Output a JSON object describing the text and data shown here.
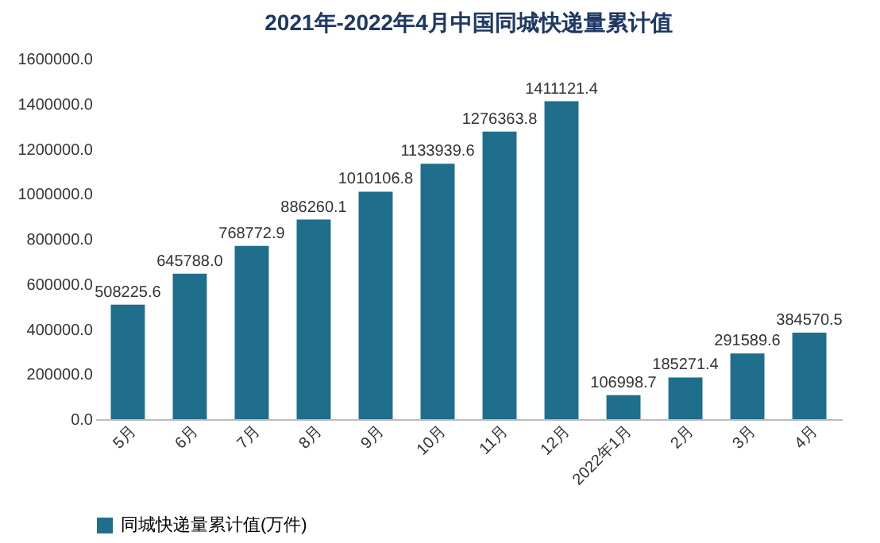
{
  "chart_data": {
    "type": "bar",
    "title": "2021年-2022年4月中国同城快递量累计值",
    "categories": [
      "5月",
      "6月",
      "7月",
      "8月",
      "9月",
      "10月",
      "11月",
      "12月",
      "2022年1月",
      "2月",
      "3月",
      "4月"
    ],
    "series": [
      {
        "name": "同城快递量累计值(万件)",
        "color": "#1f6e8c",
        "values": [
          508225.6,
          645788,
          768772.9,
          886260.1,
          1010106.8,
          1133939.6,
          1276363.8,
          1411121.4,
          106998.7,
          185271.4,
          291589.6,
          384570.5
        ],
        "value_labels": [
          "508225.6",
          "645788.0",
          "768772.9",
          "886260.1",
          "1010106.8",
          "1133939.6",
          "1276363.8",
          "1411121.4",
          "106998.7",
          "185271.4",
          "291589.6",
          "384570.5"
        ]
      }
    ],
    "ylim": [
      0,
      1600000
    ],
    "yticks": [
      {
        "value": 0,
        "label": "0.0"
      },
      {
        "value": 200000,
        "label": "200000.0"
      },
      {
        "value": 400000,
        "label": "400000.0"
      },
      {
        "value": 600000,
        "label": "600000.0"
      },
      {
        "value": 800000,
        "label": "800000.0"
      },
      {
        "value": 1000000,
        "label": "1000000.0"
      },
      {
        "value": 1200000,
        "label": "1200000.0"
      },
      {
        "value": 1400000,
        "label": "1400000.0"
      },
      {
        "value": 1600000,
        "label": "1600000.0"
      }
    ],
    "legend": "bottom",
    "grid": false
  }
}
